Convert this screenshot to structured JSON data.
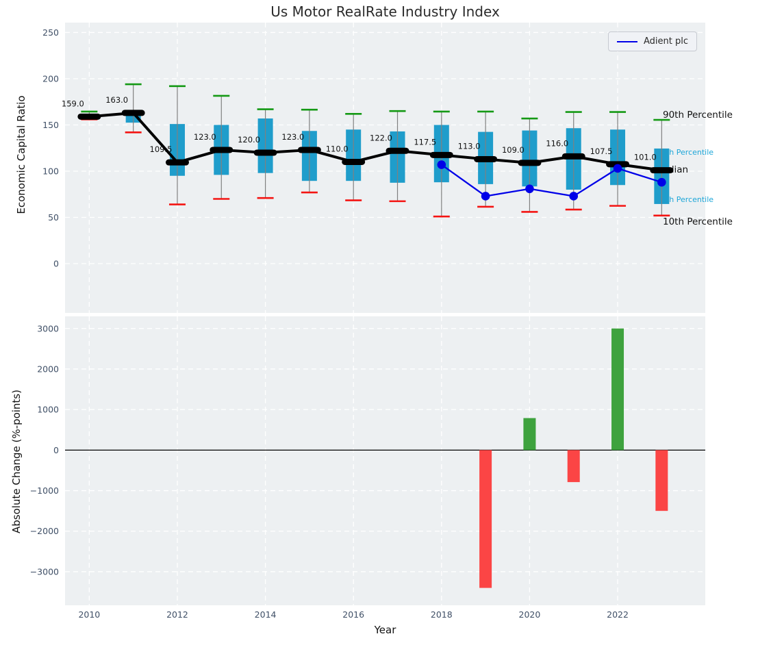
{
  "title": "Us Motor RealRate Industry Index",
  "legend": {
    "label": "Adient plc"
  },
  "annotations": {
    "p90": "90th Percentile",
    "p75": "75th Percentile",
    "median": "Median",
    "p25": "25th Percentile",
    "p10": "10th Percentile"
  },
  "colors": {
    "box_fill": "#1f9dcb",
    "cap_green": "#149914",
    "cap_red": "#f41412",
    "whisker": "#808080",
    "median_line": "#000000",
    "adient_line": "#0000e8",
    "bar_positive": "#3ea23e",
    "bar_negative": "#fb4545",
    "axes_bg": "#edf0f2",
    "grid": "#ffffff",
    "tick_label": "#3f4f66",
    "annotation_blue": "#1da6d8"
  },
  "xlim": [
    2009.45,
    2023.99
  ],
  "chart_data": [
    {
      "type": "boxplot+line",
      "ylabel": "Economic Capital Ratio",
      "years": [
        2010,
        2011,
        2012,
        2013,
        2014,
        2015,
        2016,
        2017,
        2018,
        2019,
        2020,
        2021,
        2022,
        2023
      ],
      "median": [
        159,
        163,
        109.5,
        123,
        120,
        123,
        110,
        122,
        117.5,
        113,
        109,
        116,
        107.5,
        101
      ],
      "median_labels": [
        "159.0",
        "163.0",
        "109.5",
        "123.0",
        "120.0",
        "123.0",
        "110.0",
        "122.0",
        "117.5",
        "113.0",
        "109.0",
        "116.0",
        "107.5",
        "101.0"
      ],
      "p90": [
        164.5,
        194,
        192,
        181.5,
        167,
        166.5,
        162,
        165,
        164.5,
        164.5,
        157,
        164,
        164,
        155.5
      ],
      "p75": [
        161,
        165,
        151,
        150,
        157,
        143.5,
        145,
        143,
        150,
        142.5,
        144,
        146.5,
        145,
        124.5
      ],
      "p25": [
        157,
        152.5,
        95,
        96,
        98,
        89.5,
        89.5,
        87.5,
        88,
        86,
        83.5,
        80,
        85,
        64.5
      ],
      "p10": [
        156,
        142,
        64,
        70,
        71,
        77,
        68.5,
        67.5,
        51,
        61.5,
        56,
        58.5,
        62.5,
        52
      ],
      "series": [
        {
          "name": "Adient plc",
          "x": [
            2018,
            2019,
            2020,
            2021,
            2022,
            2023
          ],
          "values": [
            107.0,
            73.0,
            80.9,
            73.0,
            103.0,
            88.0
          ]
        }
      ],
      "yticks": [
        0,
        50,
        100,
        150,
        200,
        250
      ],
      "ylim": [
        -53.3,
        260.7
      ],
      "legend_position": "upper right",
      "grid": true,
      "annotation_values": {
        "p90": 161.5,
        "p75": 120.7,
        "median": 102,
        "p25": 69.5,
        "p10": 46.5
      }
    },
    {
      "type": "bar",
      "ylabel": "Absolute Change (%-points)",
      "xlabel": "Year",
      "x": [
        2019,
        2020,
        2021,
        2022,
        2023
      ],
      "values": [
        -3400,
        790,
        -790,
        3000,
        -1500
      ],
      "yticks": [
        -3000,
        -2000,
        -1000,
        0,
        1000,
        2000,
        3000
      ],
      "ylim": [
        -3829,
        3300
      ],
      "xticks": [
        2010,
        2012,
        2014,
        2016,
        2018,
        2020,
        2022
      ],
      "grid": true
    }
  ]
}
